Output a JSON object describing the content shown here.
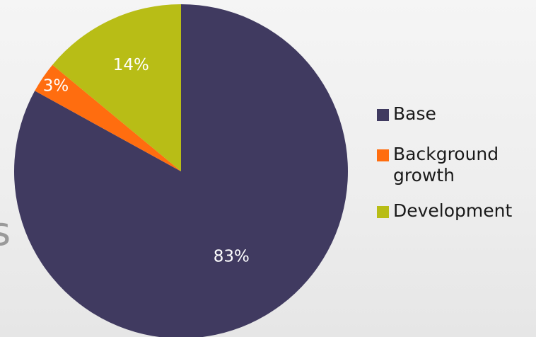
{
  "page": {
    "stray_glyph": "s"
  },
  "chart_data": {
    "type": "pie",
    "title": "",
    "slices": [
      {
        "label": "Base",
        "value": 83,
        "data_label": "83%",
        "color": "#403a60"
      },
      {
        "label": "Background growth",
        "value": 3,
        "data_label": "3%",
        "color": "#ff6d0f"
      },
      {
        "label": "Development",
        "value": 14,
        "data_label": "14%",
        "color": "#b8bd16"
      }
    ],
    "legend_position": "right",
    "label_color": "#ffffff"
  }
}
